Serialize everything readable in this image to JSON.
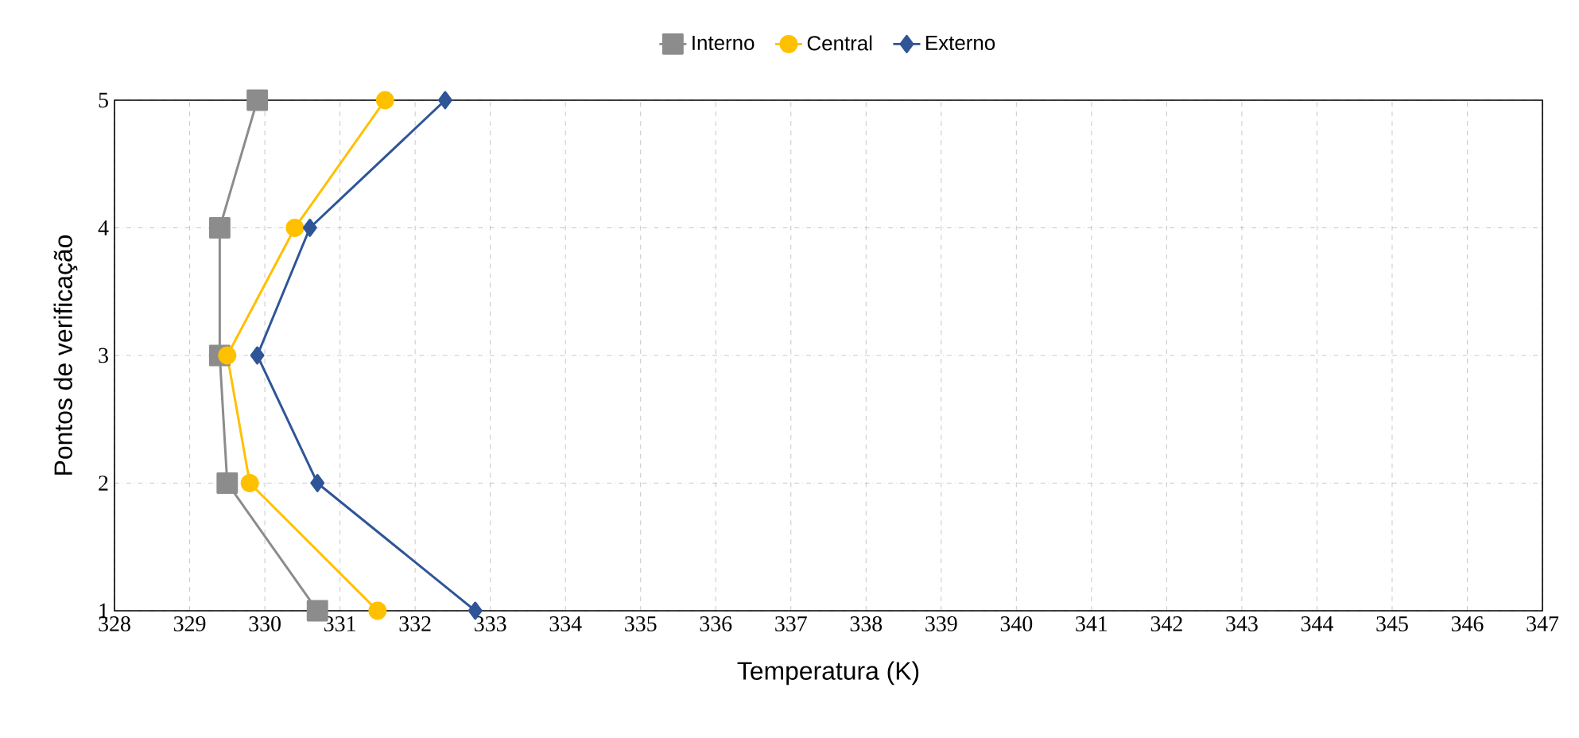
{
  "chart_data": {
    "type": "line",
    "xlabel": "Temperatura (K)",
    "ylabel": "Pontos de verificação",
    "xlim": [
      328,
      347
    ],
    "xticks": [
      328,
      329,
      330,
      331,
      332,
      333,
      334,
      335,
      336,
      337,
      338,
      339,
      340,
      341,
      342,
      343,
      344,
      345,
      346,
      347
    ],
    "ylim": [
      1,
      5
    ],
    "yticks": [
      1,
      2,
      3,
      4,
      5
    ],
    "grid": true,
    "legend": "top",
    "series": [
      {
        "name": "Interno",
        "color": "#8c8c8c",
        "marker": "square",
        "x": [
          330.7,
          329.5,
          329.4,
          329.4,
          329.9
        ],
        "values": [
          1,
          2,
          3,
          4,
          5
        ]
      },
      {
        "name": "Central",
        "color": "#ffc000",
        "marker": "circle",
        "x": [
          331.5,
          329.8,
          329.5,
          330.4,
          331.6
        ],
        "values": [
          1,
          2,
          3,
          4,
          5
        ]
      },
      {
        "name": "Externo",
        "color": "#2f5597",
        "marker": "diamond",
        "x": [
          332.8,
          330.7,
          329.9,
          330.6,
          332.4
        ],
        "values": [
          1,
          2,
          3,
          4,
          5
        ]
      }
    ]
  }
}
